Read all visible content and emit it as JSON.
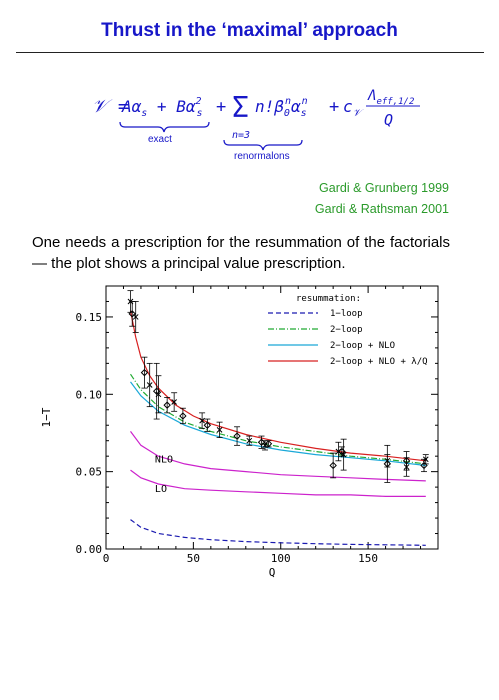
{
  "slide": {
    "title": "Thrust in the ‘maximal’ approach",
    "formula": {
      "lhs": "𝒱 = ",
      "term1": "Aαs + Bαs²",
      "term2": "Σ n!β₀ⁿαsⁿ",
      "term3": "+ c𝒱 Λeff,1/2 / Q",
      "sum_lower": "n=3",
      "label_exact": "exact",
      "label_renormalons": "renormalons"
    },
    "references": [
      "Gardi & Grunberg 1999",
      "Gardi & Rathsman 2001"
    ],
    "paragraph": "One needs a prescription for the resummation of the factorials — the plot shows a principal value prescription."
  },
  "chart_data": {
    "type": "line",
    "xlabel": "Q",
    "ylabel": "1−T",
    "xlim": [
      0,
      190
    ],
    "ylim": [
      0,
      0.17
    ],
    "x_ticks": [
      "0",
      "50",
      "100",
      "150"
    ],
    "y_ticks": [
      "0.00",
      "0.05",
      "0.10",
      "0.15"
    ],
    "legend_title": "resummation:",
    "legend_position": "top-right",
    "series": [
      {
        "name": "1−loop",
        "color": "#1a1ab0",
        "style": "dashed",
        "x": [
          14,
          20,
          30,
          45,
          60,
          80,
          100,
          120,
          140,
          160,
          183
        ],
        "y": [
          0.019,
          0.014,
          0.01,
          0.0075,
          0.006,
          0.0048,
          0.004,
          0.0034,
          0.003,
          0.0027,
          0.0024
        ]
      },
      {
        "name": "2−loop",
        "color": "#22aa33",
        "style": "dashdot",
        "x": [
          14,
          20,
          30,
          45,
          60,
          80,
          100,
          120,
          140,
          160,
          183
        ],
        "y": [
          0.113,
          0.103,
          0.092,
          0.082,
          0.076,
          0.07,
          0.066,
          0.063,
          0.06,
          0.058,
          0.055
        ]
      },
      {
        "name": "2−loop + NLO",
        "color": "#1aa8d8",
        "style": "solid",
        "x": [
          14,
          20,
          30,
          45,
          60,
          80,
          100,
          120,
          140,
          160,
          183
        ],
        "y": [
          0.108,
          0.099,
          0.089,
          0.08,
          0.074,
          0.068,
          0.064,
          0.061,
          0.059,
          0.057,
          0.054
        ]
      },
      {
        "name": "2−loop + NLO + λ/Q",
        "color": "#d82020",
        "style": "solid",
        "x": [
          14,
          17,
          20,
          25,
          30,
          40,
          50,
          60,
          80,
          100,
          120,
          140,
          160,
          183
        ],
        "y": [
          0.154,
          0.137,
          0.124,
          0.112,
          0.104,
          0.093,
          0.086,
          0.081,
          0.074,
          0.069,
          0.065,
          0.062,
          0.06,
          0.057
        ]
      },
      {
        "name": "NLO",
        "color": "#cc22cc",
        "style": "solid",
        "x": [
          14,
          20,
          30,
          45,
          60,
          80,
          100,
          120,
          140,
          160,
          183
        ],
        "y": [
          0.076,
          0.067,
          0.06,
          0.055,
          0.052,
          0.05,
          0.048,
          0.047,
          0.046,
          0.045,
          0.044
        ]
      },
      {
        "name": "LO",
        "color": "#cc22cc",
        "style": "solid",
        "x": [
          14,
          20,
          30,
          45,
          60,
          80,
          100,
          120,
          140,
          160,
          183
        ],
        "y": [
          0.051,
          0.046,
          0.042,
          0.039,
          0.038,
          0.037,
          0.036,
          0.035,
          0.035,
          0.034,
          0.034
        ]
      }
    ],
    "curve_labels": [
      {
        "text": "NLO",
        "x": 28,
        "y": 0.056
      },
      {
        "text": "LO",
        "x": 28,
        "y": 0.037
      }
    ],
    "data_points": [
      {
        "x": 14,
        "y": 0.16,
        "err": 0.007
      },
      {
        "x": 15,
        "y": 0.152,
        "err": 0.008
      },
      {
        "x": 17,
        "y": 0.15,
        "err": 0.01
      },
      {
        "x": 22,
        "y": 0.114,
        "err": 0.01
      },
      {
        "x": 25,
        "y": 0.106,
        "err": 0.014
      },
      {
        "x": 29,
        "y": 0.102,
        "err": 0.018
      },
      {
        "x": 30,
        "y": 0.1,
        "err": 0.012
      },
      {
        "x": 35,
        "y": 0.093,
        "err": 0.005
      },
      {
        "x": 39,
        "y": 0.095,
        "err": 0.006
      },
      {
        "x": 44,
        "y": 0.086,
        "err": 0.005
      },
      {
        "x": 55,
        "y": 0.083,
        "err": 0.005
      },
      {
        "x": 58,
        "y": 0.08,
        "err": 0.004
      },
      {
        "x": 65,
        "y": 0.077,
        "err": 0.005
      },
      {
        "x": 75,
        "y": 0.073,
        "err": 0.006
      },
      {
        "x": 82,
        "y": 0.07,
        "err": 0.003
      },
      {
        "x": 89,
        "y": 0.069,
        "err": 0.004
      },
      {
        "x": 91,
        "y": 0.067,
        "err": 0.003
      },
      {
        "x": 93,
        "y": 0.068,
        "err": 0.002
      },
      {
        "x": 133,
        "y": 0.063,
        "err": 0.006
      },
      {
        "x": 135,
        "y": 0.063,
        "err": 0.003
      },
      {
        "x": 161,
        "y": 0.057,
        "err": 0.004
      },
      {
        "x": 172,
        "y": 0.057,
        "err": 0.006
      },
      {
        "x": 183,
        "y": 0.058,
        "err": 0.003
      },
      {
        "x": 130,
        "y": 0.054,
        "err": 0.008
      },
      {
        "x": 136,
        "y": 0.061,
        "err": 0.01
      },
      {
        "x": 161,
        "y": 0.055,
        "err": 0.012
      },
      {
        "x": 172,
        "y": 0.053,
        "err": 0.006
      },
      {
        "x": 182,
        "y": 0.054,
        "err": 0.004
      }
    ]
  }
}
